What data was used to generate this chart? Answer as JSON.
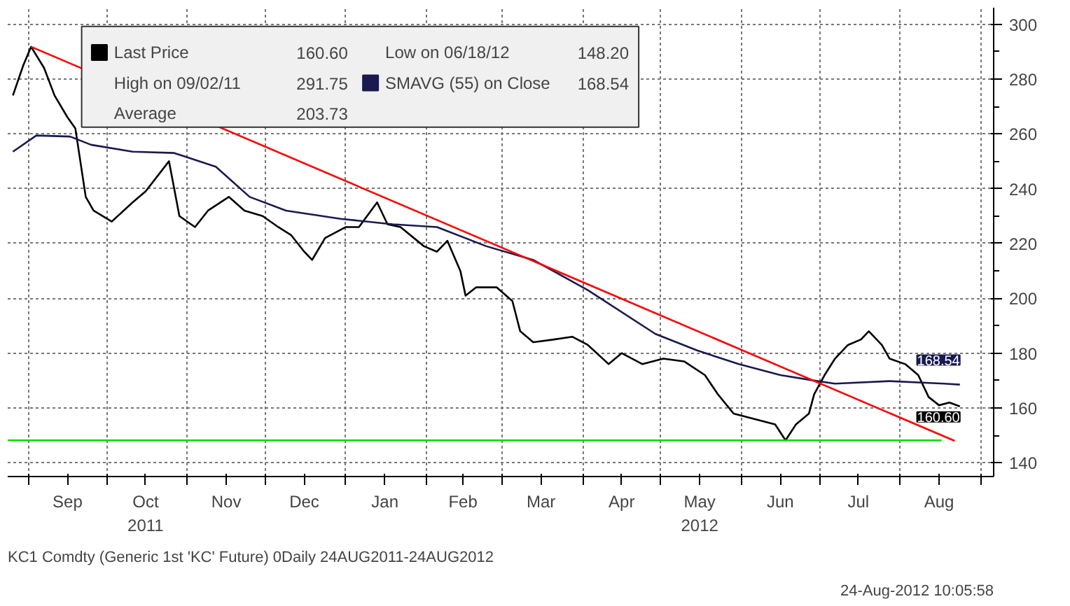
{
  "chart_data": {
    "type": "line",
    "xlim": [
      "2011-08-24",
      "2012-09-06"
    ],
    "ylim": [
      135,
      306
    ],
    "xticks": [
      {
        "value": "2011-09-01",
        "label": null
      },
      {
        "value": "2011-09-16",
        "label": "Sep"
      },
      {
        "value": "2011-10-01",
        "label": null
      },
      {
        "value": "2011-10-16",
        "label": "Oct\n2011"
      },
      {
        "value": "2011-11-01",
        "label": null
      },
      {
        "value": "2011-11-16",
        "label": "Nov"
      },
      {
        "value": "2011-12-01",
        "label": null
      },
      {
        "value": "2011-12-16",
        "label": "Dec"
      },
      {
        "value": "2012-01-01",
        "label": null
      },
      {
        "value": "2012-01-16",
        "label": "Jan"
      },
      {
        "value": "2012-02-01",
        "label": null
      },
      {
        "value": "2012-02-15",
        "label": "Feb"
      },
      {
        "value": "2012-03-01",
        "label": null
      },
      {
        "value": "2012-03-16",
        "label": "Mar"
      },
      {
        "value": "2012-04-01",
        "label": null
      },
      {
        "value": "2012-04-16",
        "label": "Apr"
      },
      {
        "value": "2012-05-01",
        "label": null
      },
      {
        "value": "2012-05-16",
        "label": "May\n2012"
      },
      {
        "value": "2012-06-01",
        "label": null
      },
      {
        "value": "2012-06-16",
        "label": "Jun"
      },
      {
        "value": "2012-07-01",
        "label": null
      },
      {
        "value": "2012-07-16",
        "label": "Jul"
      },
      {
        "value": "2012-08-01",
        "label": null
      },
      {
        "value": "2012-08-16",
        "label": "Aug"
      },
      {
        "value": "2012-09-01",
        "label": null
      }
    ],
    "yticks": [
      140,
      160,
      180,
      200,
      220,
      240,
      260,
      280,
      300
    ],
    "grid": true,
    "legend": "top left",
    "series": [
      {
        "name": "Last Price",
        "color": "#000000",
        "x": [
          "2011-08-26",
          "2011-08-30",
          "2011-09-02",
          "2011-09-07",
          "2011-09-11",
          "2011-09-16",
          "2011-09-19",
          "2011-09-23",
          "2011-09-26",
          "2011-10-03",
          "2011-10-11",
          "2011-10-16",
          "2011-10-25",
          "2011-10-29",
          "2011-11-04",
          "2011-11-09",
          "2011-11-17",
          "2011-11-23",
          "2011-11-30",
          "2011-12-06",
          "2011-12-11",
          "2011-12-16",
          "2011-12-19",
          "2011-12-24",
          "2012-01-01",
          "2012-01-06",
          "2012-01-13",
          "2012-01-17",
          "2012-01-22",
          "2012-01-31",
          "2012-02-05",
          "2012-02-09",
          "2012-02-14",
          "2012-02-16",
          "2012-02-20",
          "2012-02-28",
          "2012-03-05",
          "2012-03-08",
          "2012-03-13",
          "2012-03-21",
          "2012-03-28",
          "2012-04-03",
          "2012-04-11",
          "2012-04-16",
          "2012-04-24",
          "2012-05-02",
          "2012-05-10",
          "2012-05-18",
          "2012-05-23",
          "2012-05-29",
          "2012-06-06",
          "2012-06-14",
          "2012-06-18",
          "2012-06-22",
          "2012-06-27",
          "2012-06-29",
          "2012-07-03",
          "2012-07-07",
          "2012-07-12",
          "2012-07-17",
          "2012-07-20",
          "2012-07-25",
          "2012-07-28",
          "2012-08-03",
          "2012-08-08",
          "2012-08-12",
          "2012-08-16",
          "2012-08-20",
          "2012-08-24"
        ],
        "values": [
          274,
          285,
          291.75,
          284,
          274,
          266,
          262,
          237,
          232,
          228,
          235,
          239,
          250,
          230,
          226,
          232,
          237,
          232,
          230,
          226,
          223,
          217,
          214,
          222,
          226,
          226,
          235,
          227,
          226,
          219,
          217,
          221,
          210,
          201,
          204,
          204,
          199,
          188,
          184,
          185,
          186,
          183,
          176,
          180,
          176,
          178,
          177,
          172,
          165,
          158,
          156,
          154,
          148.2,
          154,
          158,
          165,
          172,
          178,
          183,
          185,
          188,
          183,
          178,
          176,
          172,
          164,
          161,
          162,
          160.6
        ],
        "value_labels": [
          null,
          null,
          null,
          null,
          null,
          null,
          null,
          null,
          null,
          null,
          null,
          null,
          null,
          null,
          null,
          null,
          null,
          null,
          null,
          null,
          null,
          null,
          null,
          null,
          null,
          null,
          null,
          null,
          null,
          null,
          null,
          null,
          null,
          null,
          null,
          null,
          null,
          null,
          null,
          null,
          null,
          null,
          null,
          null,
          null,
          null,
          null,
          null,
          null,
          null,
          null,
          null,
          null,
          null,
          null,
          null,
          null,
          null,
          null,
          null,
          null,
          null,
          null,
          null,
          null,
          null,
          null,
          null,
          "160.60"
        ]
      },
      {
        "name": "SMAVG (55) on Close",
        "color": "#1a1a50",
        "x": [
          "2011-08-26",
          "2011-09-04",
          "2011-09-17",
          "2011-09-25",
          "2011-10-11",
          "2011-10-27",
          "2011-11-12",
          "2011-11-25",
          "2011-12-09",
          "2011-12-30",
          "2012-01-19",
          "2012-02-05",
          "2012-02-24",
          "2012-03-13",
          "2012-04-03",
          "2012-04-29",
          "2012-05-15",
          "2012-05-31",
          "2012-06-16",
          "2012-06-29",
          "2012-07-07",
          "2012-07-28",
          "2012-08-18",
          "2012-08-24"
        ],
        "values": [
          253.5,
          259.4,
          259,
          256,
          253.5,
          253,
          248,
          237,
          232,
          229,
          227,
          226,
          219,
          214,
          203,
          187,
          181,
          176,
          172,
          170,
          168.9,
          169.8,
          168.9,
          168.54
        ],
        "value_labels": [
          null,
          null,
          null,
          null,
          null,
          null,
          null,
          null,
          null,
          null,
          null,
          null,
          null,
          null,
          null,
          null,
          null,
          null,
          null,
          null,
          null,
          null,
          null,
          "168.54"
        ]
      },
      {
        "color": "#ff0000",
        "x": [
          "2011-09-02",
          "2012-08-22"
        ],
        "values": [
          291.75,
          148
        ]
      },
      {
        "color": "#00dd00",
        "x": [
          "2011-08-24",
          "2012-08-17"
        ],
        "values": [
          148.2,
          148.2
        ]
      }
    ],
    "annotations": [
      "High on 09/02/11 291.75",
      "Average 203.73",
      "Low on 06/18/12 148.20",
      "KC1 Comdty (Generic 1st 'KC' Future) 0Daily 24AUG2011-24AUG2012",
      "24-Aug-2012 10:05:58"
    ]
  }
}
